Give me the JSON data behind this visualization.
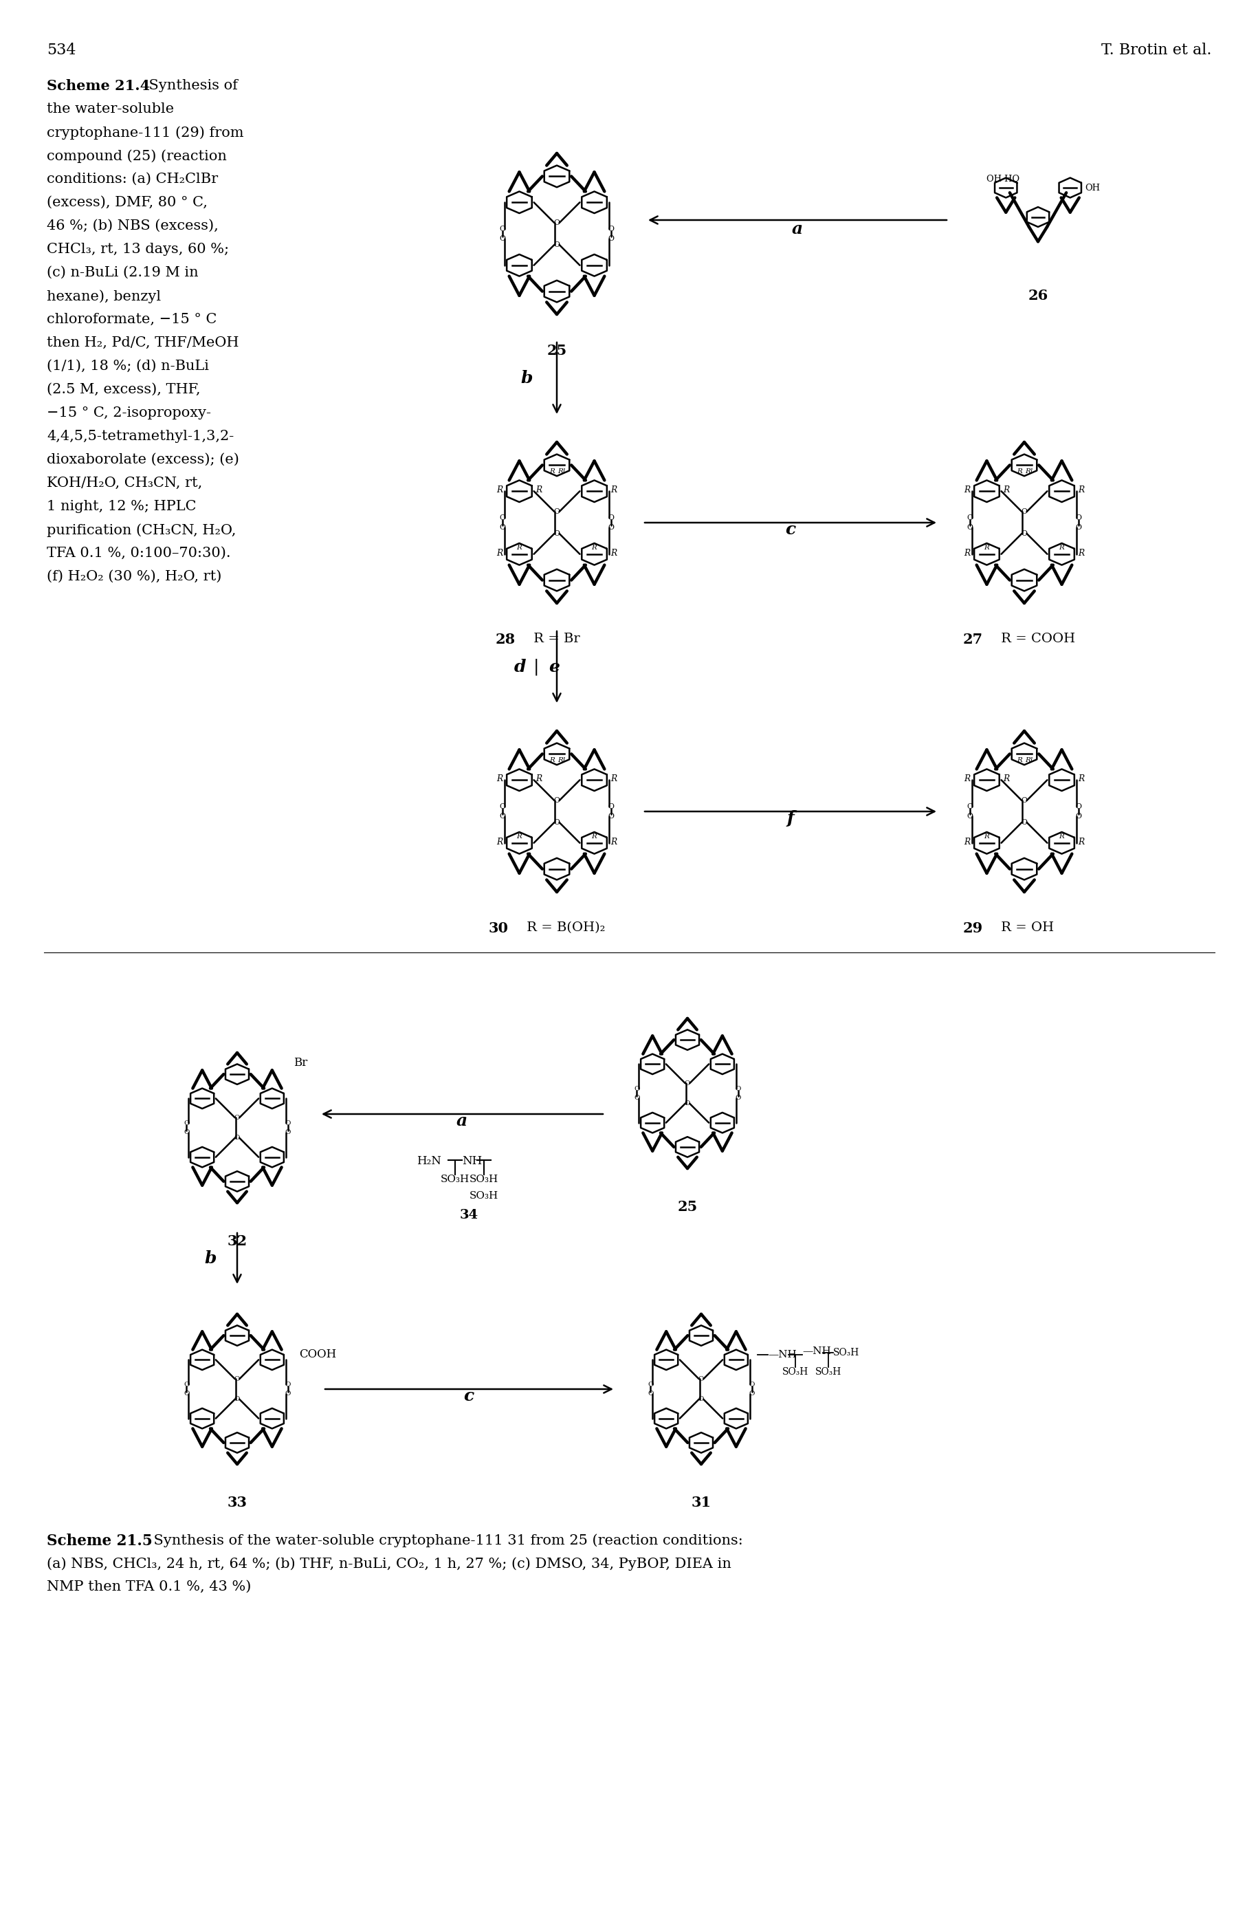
{
  "page_number": "534",
  "author": "T. Brotin et al.",
  "scheme4_bold": "Scheme 21.4",
  "scheme4_normal": " Synthesis of",
  "caption4_lines": [
    "the water-soluble",
    "cryptophane-111 (29) from",
    "compound (25) (reaction",
    "conditions: (a) CH₂ClBr",
    "(excess), DMF, 80 ° C,",
    "46 %; (b) NBS (excess),",
    "CHCl₃, rt, 13 days, 60 %;",
    "(c) n-BuLi (2.19 M in",
    "hexane), benzyl",
    "chloroformate, −15 ° C",
    "then H₂, Pd/C, THF/MeOH",
    "(1/1), 18 %; (d) n-BuLi",
    "(2.5 M, excess), THF,",
    "−15 ° C, 2-isopropoxy-",
    "4,4,5,5-tetramethyl-1,3,2-",
    "dioxaborolate (excess); (e)",
    "KOH/H₂O, CH₃CN, rt,",
    "1 night, 12 %; HPLC",
    "purification (CH₃CN, H₂O,",
    "TFA 0.1 %, 0:100–70:30).",
    "(f) H₂O₂ (30 %), H₂O, rt)"
  ],
  "scheme5_bold": "Scheme 21.5",
  "scheme5_line1": " Synthesis of the water-soluble cryptophane-111 31 from 25 (reaction conditions:",
  "scheme5_line2": "(a) NBS, CHCl₃, 24 h, rt, 64 %; (b) THF, n-BuLi, CO₂, 1 h, 27 %; (c) DMSO, 34, PyBOP, DIEA in",
  "scheme5_line3": "NMP then TFA 0.1 %, 43 %)",
  "bg": "#ffffff",
  "fg": "#000000"
}
